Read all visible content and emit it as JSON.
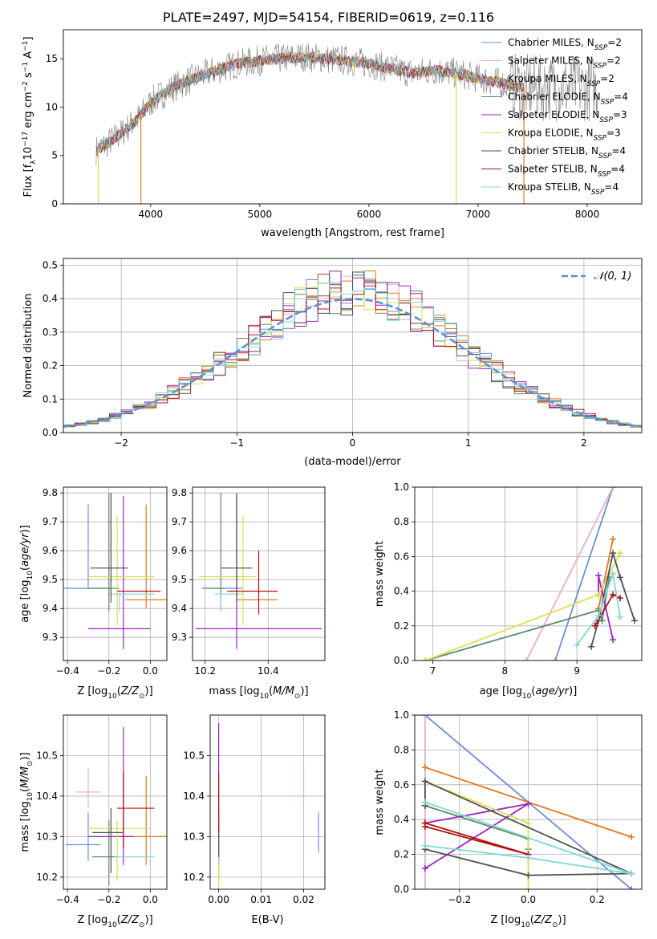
{
  "figure": {
    "title": "PLATE=2497, MJD=54154, FIBERID=0619, z=0.116"
  },
  "colors": {
    "chabrier_miles": "#6a8fd6",
    "salpeter_miles": "#e8b0c8",
    "kroupa_miles": "#e07a1e",
    "chabrier_elodie": "#5a8a6a",
    "salpeter_elodie": "#a020c0",
    "kroupa_elodie": "#d8e050",
    "chabrier_stelib": "#505050",
    "salpeter_stelib": "#b01010",
    "kroupa_stelib": "#80d8d8",
    "gaussian": "#5b8fd4",
    "grid": "#b0b0b0"
  },
  "chart_data": [
    {
      "id": "spectrum",
      "type": "line",
      "title": "",
      "xlabel": "wavelength [Angstrom, rest frame]",
      "ylabel": "Flux [f_λ10^-17 erg cm^-2 s^-1 A^-1]",
      "xlim": [
        3200,
        8500
      ],
      "ylim": [
        0,
        18
      ],
      "xticks": [
        4000,
        5000,
        6000,
        7000,
        8000
      ],
      "yticks": [
        0,
        5,
        10,
        15
      ],
      "continuum": {
        "x": [
          3500,
          3700,
          3900,
          4000,
          4200,
          4400,
          4600,
          4800,
          5000,
          5200,
          5400,
          5600,
          5800,
          6000,
          6200,
          6400,
          6600,
          6800,
          7000,
          7200,
          7400
        ],
        "y": [
          5.5,
          7.0,
          9.0,
          10.5,
          12.0,
          13.0,
          13.8,
          14.5,
          14.8,
          15.0,
          15.2,
          15.0,
          14.8,
          14.5,
          14.0,
          13.5,
          13.8,
          13.5,
          13.0,
          12.5,
          12.0
        ]
      },
      "grid": false,
      "legend_position": "top-right",
      "legend": [
        {
          "label": "Chabrier MILES, N",
          "sub": "SSP",
          "eq": "=2",
          "color_key": "chabrier_miles"
        },
        {
          "label": "Salpeter MILES, N",
          "sub": "SSP",
          "eq": "=2",
          "color_key": "salpeter_miles"
        },
        {
          "label": "Kroupa MILES, N",
          "sub": "SSP",
          "eq": "=2",
          "color_key": "kroupa_miles"
        },
        {
          "label": "Chabrier ELODIE, N",
          "sub": "SSP",
          "eq": "=4",
          "color_key": "chabrier_elodie"
        },
        {
          "label": "Salpeter ELODIE, N",
          "sub": "SSP",
          "eq": "=3",
          "color_key": "salpeter_elodie"
        },
        {
          "label": "Kroupa ELODIE, N",
          "sub": "SSP",
          "eq": "=3",
          "color_key": "kroupa_elodie"
        },
        {
          "label": "Chabrier STELIB, N",
          "sub": "SSP",
          "eq": "=4",
          "color_key": "chabrier_stelib"
        },
        {
          "label": "Salpeter STELIB, N",
          "sub": "SSP",
          "eq": "=4",
          "color_key": "salpeter_stelib"
        },
        {
          "label": "Kroupa STELIB, N",
          "sub": "SSP",
          "eq": "=4",
          "color_key": "kroupa_stelib"
        }
      ]
    },
    {
      "id": "residuals",
      "type": "line",
      "xlabel": "(data-model)/error",
      "ylabel": "Normed distribution",
      "xlim": [
        -2.5,
        2.5
      ],
      "ylim": [
        0,
        0.52
      ],
      "xticks": [
        -2,
        -1,
        0,
        1,
        2
      ],
      "yticks": [
        0.0,
        0.1,
        0.2,
        0.3,
        0.4,
        0.5
      ],
      "grid": true,
      "legend_position": "top-right",
      "legend": [
        {
          "label": "𝒩(0, 1)",
          "color_key": "gaussian"
        }
      ]
    },
    {
      "id": "age_vs_Z",
      "type": "scatter",
      "xlabel": "Z [log10(Z/Z⊙)]",
      "ylabel": "age  [log10(age/yr)]",
      "xlim": [
        -0.42,
        0.08
      ],
      "ylim": [
        9.22,
        9.82
      ],
      "xticks": [
        -0.4,
        -0.2,
        0.0
      ],
      "yticks": [
        9.3,
        9.4,
        9.5,
        9.6,
        9.7,
        9.8
      ],
      "grid": true,
      "points": [
        {
          "x": -0.3,
          "y": 9.47,
          "xerr": [
            0.43,
            0.1
          ],
          "yerr": [
            0.0,
            0.29
          ],
          "color_key": "chabrier_miles"
        },
        {
          "x": -0.15,
          "y": 9.45,
          "xerr": [
            0.05,
            0.05
          ],
          "yerr": [
            0.0,
            0.0
          ],
          "color_key": "salpeter_miles"
        },
        {
          "x": -0.02,
          "y": 9.43,
          "xerr": [
            0.1,
            0.12
          ],
          "yerr": [
            0.03,
            0.33
          ],
          "color_key": "kroupa_miles"
        },
        {
          "x": -0.2,
          "y": 9.47,
          "xerr": [
            0.1,
            0.05
          ],
          "yerr": [
            0.08,
            0.33
          ],
          "color_key": "chabrier_elodie"
        },
        {
          "x": -0.13,
          "y": 9.33,
          "xerr": [
            0.17,
            0.13
          ],
          "yerr": [
            0.07,
            0.46
          ],
          "color_key": "salpeter_elodie"
        },
        {
          "x": -0.16,
          "y": 9.51,
          "xerr": [
            0.14,
            0.18
          ],
          "yerr": [
            0.17,
            0.21
          ],
          "color_key": "kroupa_elodie"
        },
        {
          "x": -0.19,
          "y": 9.54,
          "xerr": [
            0.1,
            0.08
          ],
          "yerr": [
            0.12,
            0.26
          ],
          "color_key": "chabrier_stelib"
        },
        {
          "x": -0.13,
          "y": 9.46,
          "xerr": [
            0.03,
            0.18
          ],
          "yerr": [
            0.0,
            0.0
          ],
          "color_key": "salpeter_stelib"
        },
        {
          "x": -0.15,
          "y": 9.45,
          "xerr": [
            0.02,
            0.17
          ],
          "yerr": [
            0.06,
            0.0
          ],
          "color_key": "kroupa_stelib"
        }
      ]
    },
    {
      "id": "age_vs_mass",
      "type": "scatter",
      "xlabel": "mass [log10(M/M⊙)]",
      "ylabel": "",
      "xlim": [
        10.16,
        10.58
      ],
      "ylim": [
        9.22,
        9.82
      ],
      "xticks": [
        10.2,
        10.4
      ],
      "yticks": [
        9.3,
        9.4,
        9.5,
        9.6,
        9.7,
        9.8
      ],
      "grid": true,
      "points": [
        {
          "x": 10.28,
          "y": 9.47,
          "xerr": [
            0.06,
            0.04
          ],
          "yerr": [
            0.0,
            0.0
          ],
          "color_key": "chabrier_miles"
        },
        {
          "x": 10.3,
          "y": 9.45,
          "xerr": [
            0.02,
            0.02
          ],
          "yerr": [
            0.0,
            0.0
          ],
          "color_key": "salpeter_miles"
        },
        {
          "x": 10.3,
          "y": 9.43,
          "xerr": [
            0.0,
            0.13
          ],
          "yerr": [
            0.0,
            0.0
          ],
          "color_key": "kroupa_miles"
        },
        {
          "x": 10.25,
          "y": 9.47,
          "xerr": [
            0.06,
            0.01
          ],
          "yerr": [
            0.08,
            0.33
          ],
          "color_key": "chabrier_elodie"
        },
        {
          "x": 10.3,
          "y": 9.33,
          "xerr": [
            0.13,
            0.27
          ],
          "yerr": [
            0.07,
            0.46
          ],
          "color_key": "salpeter_elodie"
        },
        {
          "x": 10.32,
          "y": 9.51,
          "xerr": [
            0.14,
            0.04
          ],
          "yerr": [
            0.17,
            0.21
          ],
          "color_key": "kroupa_elodie"
        },
        {
          "x": 10.3,
          "y": 9.54,
          "xerr": [
            0.05,
            0.05
          ],
          "yerr": [
            0.12,
            0.26
          ],
          "color_key": "chabrier_stelib"
        },
        {
          "x": 10.37,
          "y": 9.46,
          "xerr": [
            0.1,
            0.06
          ],
          "yerr": [
            0.08,
            0.14
          ],
          "color_key": "salpeter_stelib"
        },
        {
          "x": 10.25,
          "y": 9.45,
          "xerr": [
            0.02,
            0.04
          ],
          "yerr": [
            0.06,
            0.0
          ],
          "color_key": "kroupa_stelib"
        }
      ]
    },
    {
      "id": "massweight_vs_age",
      "type": "line",
      "xlabel": "age  [log10(age/yr)]",
      "ylabel": "mass weight",
      "xlim": [
        6.75,
        9.9
      ],
      "ylim": [
        0,
        1.0
      ],
      "xticks": [
        7,
        8,
        9
      ],
      "yticks": [
        0.0,
        0.2,
        0.4,
        0.6,
        0.8,
        1.0
      ],
      "grid": true,
      "series": [
        {
          "color_key": "chabrier_miles",
          "x": [
            8.7,
            9.5
          ],
          "y": [
            0.0,
            1.0
          ]
        },
        {
          "color_key": "salpeter_miles",
          "x": [
            8.3,
            9.5
          ],
          "y": [
            0.0,
            1.0
          ]
        },
        {
          "color_key": "kroupa_miles",
          "x": [
            9.3,
            9.5
          ],
          "y": [
            0.3,
            0.7
          ]
        },
        {
          "color_key": "chabrier_elodie",
          "x": [
            6.9,
            9.3,
            9.35,
            9.45
          ],
          "y": [
            0.0,
            0.29,
            0.23,
            0.48
          ]
        },
        {
          "color_key": "salpeter_elodie",
          "x": [
            9.3,
            9.3,
            9.5
          ],
          "y": [
            0.38,
            0.49,
            0.12
          ]
        },
        {
          "color_key": "kroupa_elodie",
          "x": [
            6.9,
            9.3,
            9.6
          ],
          "y": [
            0.0,
            0.38,
            0.62
          ]
        },
        {
          "color_key": "chabrier_stelib",
          "x": [
            9.2,
            9.3,
            9.5,
            9.6,
            9.8
          ],
          "y": [
            0.08,
            0.23,
            0.62,
            0.48,
            0.23
          ]
        },
        {
          "color_key": "salpeter_stelib",
          "x": [
            9.25,
            9.5,
            9.6
          ],
          "y": [
            0.2,
            0.38,
            0.36
          ]
        },
        {
          "color_key": "kroupa_stelib",
          "x": [
            9.0,
            9.3,
            9.5,
            9.6
          ],
          "y": [
            0.09,
            0.26,
            0.5,
            0.25
          ]
        }
      ]
    },
    {
      "id": "mass_vs_Z",
      "type": "scatter",
      "xlabel": "Z [log10(Z/Z⊙)]",
      "ylabel": "mass [log10(M/M⊙)]",
      "xlim": [
        -0.42,
        0.08
      ],
      "ylim": [
        10.17,
        10.6
      ],
      "xticks": [
        -0.4,
        -0.2,
        0.0
      ],
      "yticks": [
        10.2,
        10.3,
        10.4,
        10.5
      ],
      "grid": true,
      "points": [
        {
          "x": -0.3,
          "y": 10.28,
          "xerr": [
            0.11,
            0.06
          ],
          "yerr": [
            0.04,
            0.08
          ],
          "color_key": "chabrier_miles"
        },
        {
          "x": -0.3,
          "y": 10.41,
          "xerr": [
            0.06,
            0.06
          ],
          "yerr": [
            0.04,
            0.06
          ],
          "color_key": "salpeter_miles"
        },
        {
          "x": -0.02,
          "y": 10.3,
          "xerr": [
            0.12,
            0.1
          ],
          "yerr": [
            0.07,
            0.15
          ],
          "color_key": "kroupa_miles"
        },
        {
          "x": -0.2,
          "y": 10.25,
          "xerr": [
            0.08,
            0.05
          ],
          "yerr": [
            0.07,
            0.09
          ],
          "color_key": "chabrier_elodie"
        },
        {
          "x": -0.13,
          "y": 10.3,
          "xerr": [
            0.17,
            0.05
          ],
          "yerr": [
            0.07,
            0.27
          ],
          "color_key": "salpeter_elodie"
        },
        {
          "x": -0.16,
          "y": 10.32,
          "xerr": [
            0.14,
            0.16
          ],
          "yerr": [
            0.13,
            0.02
          ],
          "color_key": "kroupa_elodie"
        },
        {
          "x": -0.19,
          "y": 10.31,
          "xerr": [
            0.09,
            0.06
          ],
          "yerr": [
            0.1,
            0.06
          ],
          "color_key": "chabrier_stelib"
        },
        {
          "x": -0.13,
          "y": 10.37,
          "xerr": [
            0.03,
            0.15
          ],
          "yerr": [
            0.1,
            0.09
          ],
          "color_key": "salpeter_stelib"
        },
        {
          "x": -0.15,
          "y": 10.25,
          "xerr": [
            0.02,
            0.17
          ],
          "yerr": [
            0.0,
            0.0
          ],
          "color_key": "kroupa_stelib"
        }
      ]
    },
    {
      "id": "mass_vs_EBV",
      "type": "scatter",
      "xlabel": "E(B-V)",
      "ylabel": "",
      "xlim": [
        -0.002,
        0.025
      ],
      "ylim": [
        10.17,
        10.6
      ],
      "xticks": [
        0.0,
        0.01,
        0.02
      ],
      "yticks": [
        10.2,
        10.3,
        10.4,
        10.5
      ],
      "grid": true,
      "points": [
        {
          "x": 0.0235,
          "y": 10.3,
          "yerr": [
            0.04,
            0.06
          ],
          "color_key": "chabrier_miles"
        },
        {
          "x": 0.02,
          "y": 10.4,
          "yerr": [
            0.02,
            0.08
          ],
          "color_key": "salpeter_miles"
        },
        {
          "x": 0.0,
          "y": 10.3,
          "yerr": [
            0.07,
            0.15
          ],
          "color_key": "kroupa_miles"
        },
        {
          "x": 0.0,
          "y": 10.25,
          "yerr": [
            0.06,
            0.11
          ],
          "color_key": "chabrier_elodie"
        },
        {
          "x": 0.0,
          "y": 10.3,
          "yerr": [
            0.07,
            0.28
          ],
          "color_key": "salpeter_elodie"
        },
        {
          "x": 0.0,
          "y": 10.25,
          "yerr": [
            0.08,
            0.05
          ],
          "color_key": "kroupa_elodie"
        },
        {
          "x": 0.0,
          "y": 10.3,
          "yerr": [
            0.06,
            0.05
          ],
          "color_key": "chabrier_stelib"
        },
        {
          "x": 0.0,
          "y": 10.37,
          "yerr": [
            0.06,
            0.09
          ],
          "color_key": "salpeter_stelib"
        },
        {
          "x": 0.0,
          "y": 10.25,
          "yerr": [
            0.02,
            0.0
          ],
          "color_key": "kroupa_stelib"
        }
      ]
    },
    {
      "id": "massweight_vs_Z",
      "type": "line",
      "xlabel": "Z [log10(Z/Z⊙)]",
      "ylabel": "mass weight",
      "xlim": [
        -0.33,
        0.33
      ],
      "ylim": [
        0,
        1.0
      ],
      "xticks": [
        -0.2,
        0.0,
        0.2
      ],
      "yticks": [
        0.0,
        0.2,
        0.4,
        0.6,
        0.8,
        1.0
      ],
      "grid": true,
      "series": [
        {
          "color_key": "chabrier_miles",
          "x": [
            -0.3,
            0.3
          ],
          "y": [
            1.0,
            0.0
          ]
        },
        {
          "color_key": "salpeter_miles",
          "x": [
            -0.3,
            -0.3
          ],
          "y": [
            0.0,
            1.0
          ]
        },
        {
          "color_key": "kroupa_miles",
          "x": [
            -0.3,
            0.3
          ],
          "y": [
            0.7,
            0.3
          ]
        },
        {
          "color_key": "chabrier_elodie",
          "x": [
            -0.3,
            0.0,
            0.0
          ],
          "y": [
            0.48,
            0.29,
            0.23
          ]
        },
        {
          "color_key": "salpeter_elodie",
          "x": [
            -0.3,
            0.0,
            -0.3
          ],
          "y": [
            0.12,
            0.49,
            0.38
          ]
        },
        {
          "color_key": "kroupa_elodie",
          "x": [
            -0.3,
            0.0,
            0.0
          ],
          "y": [
            0.62,
            0.38,
            0.0
          ]
        },
        {
          "color_key": "chabrier_stelib",
          "x": [
            -0.3,
            0.0,
            0.3,
            -0.3,
            -0.3
          ],
          "y": [
            0.23,
            0.08,
            0.09,
            0.62,
            0.48
          ]
        },
        {
          "color_key": "salpeter_stelib",
          "x": [
            -0.3,
            0.0,
            -0.3
          ],
          "y": [
            0.36,
            0.2,
            0.38
          ]
        },
        {
          "color_key": "kroupa_stelib",
          "x": [
            -0.3,
            0.0,
            0.3,
            -0.3
          ],
          "y": [
            0.25,
            0.18,
            0.09,
            0.5
          ]
        }
      ]
    }
  ]
}
